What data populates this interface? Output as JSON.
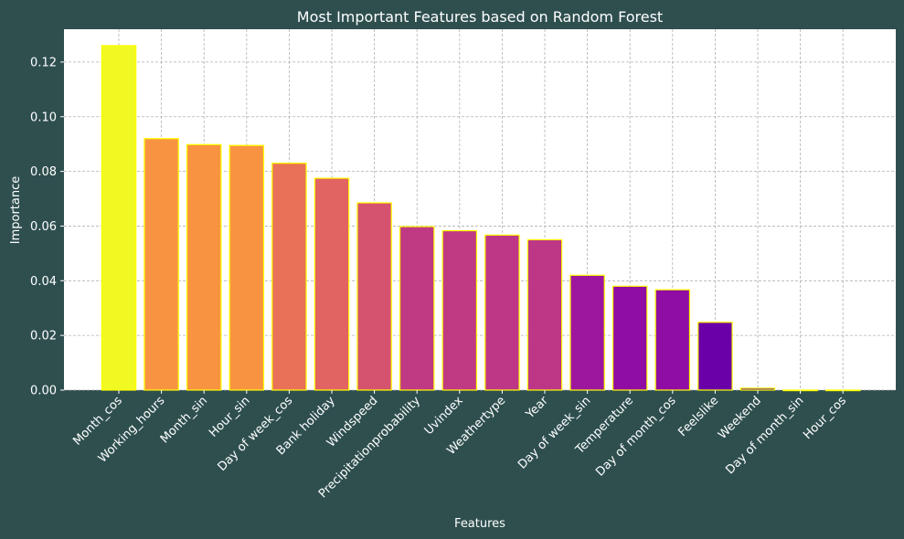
{
  "chart_data": {
    "type": "bar",
    "title": "Most Important Features based on Random Forest",
    "xlabel": "Features",
    "ylabel": "Importance",
    "ylim": [
      0,
      0.132
    ],
    "yticks": [
      0.0,
      0.02,
      0.04,
      0.06,
      0.08,
      0.1,
      0.12
    ],
    "ytick_labels": [
      "0.00",
      "0.02",
      "0.04",
      "0.06",
      "0.08",
      "0.10",
      "0.12"
    ],
    "grid": true,
    "categories": [
      "Month_cos",
      "Working_hours",
      "Month_sin",
      "Hour_sin",
      "Day of week_cos",
      "Bank holiday",
      "Windspeed",
      "Precipitationprobability",
      "Uvindex",
      "Weathertype",
      "Year",
      "Day of week_sin",
      "Temperature",
      "Day of month_cos",
      "Feelslike",
      "Weekend",
      "Day of month_sin",
      "Hour_cos"
    ],
    "values": [
      0.126,
      0.092,
      0.0898,
      0.0895,
      0.083,
      0.0775,
      0.0685,
      0.0598,
      0.0583,
      0.0567,
      0.055,
      0.042,
      0.038,
      0.0367,
      0.0248,
      0.0007,
      0.0,
      0.0
    ],
    "colors": [
      "#f0f921",
      "#f89441",
      "#f89441",
      "#f89441",
      "#e97158",
      "#e16462",
      "#d5536f",
      "#c03a83",
      "#c03a83",
      "#bd3786",
      "#bd3786",
      "#9c179e",
      "#8f0da4",
      "#8f0da4",
      "#6a00a8",
      "#5302a3",
      "#0d0887",
      "#0d0887"
    ],
    "bar_edge_color": "#ffff00",
    "background": "#2f4f4f",
    "plot_background": "#ffffff",
    "text_color": "#ffffff"
  }
}
